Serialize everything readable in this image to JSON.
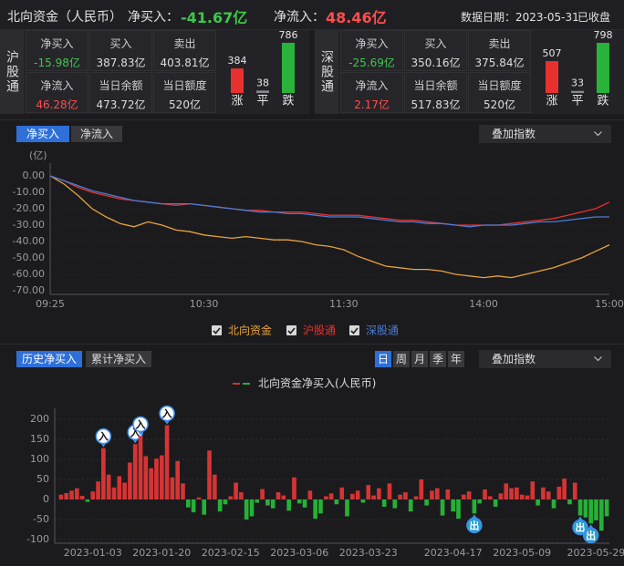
{
  "header": {
    "title": "北向资金（人民币）",
    "net_buy_label": "净买入：",
    "net_buy": "-41.67亿",
    "net_inflow_label": "净流入：",
    "net_inflow": "48.46亿",
    "date": "数据日期：2023-05-31",
    "status": "已收盘"
  },
  "panels": [
    {
      "name": "沪股通",
      "cells": [
        {
          "label": "净买入",
          "value": "-15.98亿",
          "color": "#3fc74a"
        },
        {
          "label": "买入",
          "value": "387.83亿"
        },
        {
          "label": "卖出",
          "value": "403.81亿"
        },
        {
          "label": "净流入",
          "value": "46.28亿",
          "color": "#ff4d4d"
        },
        {
          "label": "当日余额",
          "value": "473.72亿"
        },
        {
          "label": "当日额度",
          "value": "520亿"
        }
      ]
    },
    {
      "name": "深股通",
      "cells": [
        {
          "label": "净买入",
          "value": "-25.69亿",
          "color": "#3fc74a"
        },
        {
          "label": "买入",
          "value": "350.16亿"
        },
        {
          "label": "卖出",
          "value": "375.84亿"
        },
        {
          "label": "净流入",
          "value": "2.17亿",
          "color": "#ff4d4d"
        },
        {
          "label": "当日余额",
          "value": "517.83亿"
        },
        {
          "label": "当日额度",
          "value": "520亿"
        }
      ]
    }
  ],
  "intraday": {
    "tabs": [
      "净买入",
      "净流入"
    ],
    "overlay": "叠加指数"
  },
  "history": {
    "tabs": [
      "历史净买入",
      "累计净买入"
    ],
    "periods": [
      "日",
      "周",
      "月",
      "季",
      "年"
    ],
    "overlay": "叠加指数"
  },
  "chart_data": [
    {
      "type": "bar",
      "categories": [
        "涨",
        "平",
        "跌"
      ],
      "values": [
        384,
        38,
        786
      ],
      "colors": [
        "#e8312f",
        "#888888",
        "#29b33a"
      ]
    },
    {
      "type": "bar",
      "categories": [
        "涨",
        "平",
        "跌"
      ],
      "values": [
        507,
        33,
        798
      ],
      "colors": [
        "#e8312f",
        "#888888",
        "#29b33a"
      ]
    },
    {
      "type": "line",
      "y_label": "(亿)",
      "x": [
        "09:25",
        null,
        null,
        null,
        null,
        null,
        null,
        null,
        null,
        null,
        null,
        "10:30",
        null,
        null,
        null,
        null,
        null,
        null,
        null,
        null,
        null,
        "11:30",
        null,
        null,
        null,
        null,
        null,
        null,
        null,
        null,
        null,
        "14:00",
        null,
        null,
        null,
        null,
        null,
        null,
        null,
        null,
        "15:00"
      ],
      "ylim": [
        -70,
        0
      ],
      "yticks": [
        {
          "value": 0,
          "label": "0.00"
        },
        {
          "value": -10,
          "label": "-10.00"
        },
        {
          "value": -20,
          "label": "-20.00"
        },
        {
          "value": -30,
          "label": "-30.00"
        },
        {
          "value": -40,
          "label": "-40.00"
        },
        {
          "value": -50,
          "label": "-50.00"
        },
        {
          "value": -60,
          "label": "-60.00"
        },
        {
          "value": -70,
          "label": "-70.00"
        }
      ],
      "grid": true,
      "series": [
        {
          "name": "北向资金",
          "color": "#e8a33a",
          "values": [
            0,
            -5,
            -12,
            -20,
            -25,
            -29,
            -31,
            -28,
            -30,
            -33,
            -34,
            -36,
            -37,
            -38,
            -37,
            -38,
            -39,
            -39,
            -40,
            -42,
            -43,
            -45,
            -49,
            -52,
            -55,
            -56,
            -57,
            -57,
            -58,
            -60,
            -61,
            -62,
            -61,
            -62,
            -60,
            -58,
            -56,
            -53,
            -50,
            -46,
            -42
          ]
        },
        {
          "name": "沪股通",
          "color": "#e8312f",
          "values": [
            0,
            -3,
            -7,
            -10,
            -12,
            -14,
            -15,
            -16,
            -17,
            -18,
            -17,
            -18,
            -19,
            -20,
            -21,
            -21,
            -22,
            -22,
            -22,
            -23,
            -24,
            -24,
            -24,
            -25,
            -26,
            -27,
            -27,
            -28,
            -29,
            -30,
            -30,
            -30,
            -30,
            -29,
            -28,
            -27,
            -26,
            -24,
            -22,
            -20,
            -16
          ]
        },
        {
          "name": "深股通",
          "color": "#4a7dd6",
          "values": [
            0,
            -3,
            -6,
            -9,
            -11,
            -13,
            -15,
            -16,
            -17,
            -17,
            -17,
            -18,
            -19,
            -20,
            -21,
            -22,
            -22,
            -23,
            -23,
            -24,
            -25,
            -25,
            -25,
            -26,
            -27,
            -28,
            -28,
            -29,
            -29,
            -30,
            -31,
            -30,
            -30,
            -30,
            -29,
            -28,
            -28,
            -27,
            -26,
            -25,
            -25
          ]
        }
      ]
    },
    {
      "type": "bar",
      "x": [
        null,
        null,
        null,
        null,
        null,
        null,
        "2023-01-03",
        null,
        null,
        null,
        null,
        null,
        null,
        null,
        null,
        null,
        null,
        null,
        null,
        "2023-01-20",
        null,
        null,
        null,
        null,
        null,
        null,
        null,
        null,
        null,
        null,
        null,
        null,
        "2023-02-15",
        null,
        null,
        null,
        null,
        null,
        null,
        null,
        null,
        null,
        null,
        null,
        null,
        "2023-03-06",
        null,
        null,
        null,
        null,
        null,
        null,
        null,
        null,
        null,
        null,
        null,
        null,
        "2023-03-23",
        null,
        null,
        null,
        null,
        null,
        null,
        null,
        null,
        null,
        null,
        null,
        null,
        null,
        null,
        null,
        "2023-04-17",
        null,
        null,
        null,
        null,
        null,
        null,
        null,
        null,
        null,
        null,
        null,
        null,
        "2023-05-09",
        null,
        null,
        null,
        null,
        null,
        null,
        null,
        null,
        null,
        null,
        null,
        null,
        null,
        "2023-05-29",
        null,
        null
      ],
      "markers": [
        null,
        null,
        null,
        null,
        null,
        null,
        null,
        null,
        "入",
        null,
        null,
        null,
        null,
        null,
        "入",
        "入",
        null,
        null,
        null,
        null,
        "入",
        null,
        null,
        null,
        null,
        null,
        null,
        null,
        null,
        null,
        null,
        null,
        null,
        null,
        null,
        null,
        null,
        null,
        null,
        null,
        null,
        null,
        null,
        null,
        null,
        null,
        null,
        null,
        null,
        null,
        null,
        null,
        null,
        null,
        null,
        null,
        null,
        null,
        null,
        null,
        null,
        null,
        null,
        null,
        null,
        null,
        null,
        null,
        null,
        null,
        null,
        null,
        null,
        null,
        null,
        null,
        null,
        null,
        "出",
        null,
        null,
        null,
        null,
        null,
        null,
        null,
        null,
        null,
        null,
        null,
        null,
        null,
        null,
        null,
        null,
        null,
        null,
        null,
        "出",
        null,
        "出",
        null,
        null,
        null
      ],
      "ylim": [
        -100,
        200
      ],
      "yticks": [
        200,
        150,
        100,
        50,
        0,
        -50,
        -100
      ],
      "grid": true,
      "series": [
        {
          "name": "北向资金净买入(人民币)",
          "color": "#d63434",
          "negative_color": "#27b036",
          "values": [
            12,
            16,
            22,
            28,
            9,
            -6,
            20,
            45,
            128,
            62,
            30,
            58,
            42,
            92,
            138,
            158,
            108,
            78,
            102,
            110,
            185,
            55,
            96,
            40,
            -20,
            -32,
            5,
            -38,
            122,
            62,
            -30,
            -12,
            8,
            42,
            18,
            -50,
            -42,
            -8,
            26,
            -15,
            -22,
            18,
            10,
            -28,
            55,
            -10,
            -20,
            22,
            -48,
            -35,
            8,
            15,
            -12,
            30,
            -42,
            14,
            22,
            -8,
            36,
            10,
            28,
            -18,
            40,
            -22,
            12,
            18,
            -30,
            8,
            50,
            -15,
            22,
            28,
            -40,
            25,
            -30,
            -48,
            12,
            20,
            -35,
            -10,
            25,
            8,
            -18,
            15,
            40,
            28,
            30,
            12,
            10,
            45,
            -15,
            30,
            20,
            -22,
            32,
            52,
            -12,
            42,
            -40,
            -45,
            -60,
            -52,
            -78,
            -42
          ]
        }
      ]
    }
  ]
}
